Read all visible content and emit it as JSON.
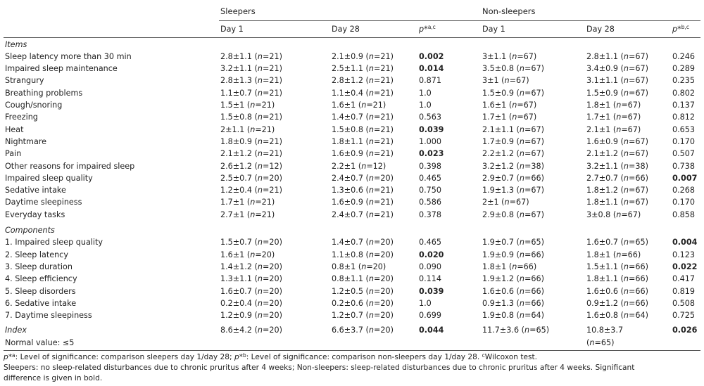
{
  "header": {
    "group_sleepers": "Sleepers",
    "group_nonsleepers": "Non-sleepers",
    "day1": "Day 1",
    "day28": "Day 28",
    "p_a": "p*",
    "p_a_sup": "a,c",
    "p_b": "p*",
    "p_b_sup": "b,c"
  },
  "sections": {
    "items": "Items",
    "components": "Components"
  },
  "items": [
    {
      "label": "Sleep latency more than 30 min",
      "s1": "2.8±1.1 (n=21)",
      "s28": "2.1±0.9 (n=21)",
      "ps": "0.002",
      "psb": true,
      "n1": "3±1.1 (n=67)",
      "n28": "2.8±1.1 (n=67)",
      "pn": "0.246",
      "pnb": false
    },
    {
      "label": "Impaired sleep maintenance",
      "s1": "3.2±1.1 (n=21)",
      "s28": "2.5±1.1 (n=21)",
      "ps": "0.014",
      "psb": true,
      "n1": "3.5±0.8 (n=67)",
      "n28": "3.4±0.9 (n=67)",
      "pn": "0.289",
      "pnb": false
    },
    {
      "label": "Strangury",
      "s1": "2.8±1.3 (n=21)",
      "s28": "2.8±1.2 (n=21)",
      "ps": "0.871",
      "psb": false,
      "n1": "3±1 (n=67)",
      "n28": "3.1±1.1 (n=67)",
      "pn": "0.235",
      "pnb": false
    },
    {
      "label": "Breathing problems",
      "s1": "1.1±0.7 (n=21)",
      "s28": "1.1±0.4 (n=21)",
      "ps": "1.0",
      "psb": false,
      "n1": "1.5±0.9 (n=67)",
      "n28": "1.5±0.9 (n=67)",
      "pn": "0.802",
      "pnb": false
    },
    {
      "label": "Cough/snoring",
      "s1": "1.5±1 (n=21)",
      "s28": "1.6±1 (n=21)",
      "ps": "1.0",
      "psb": false,
      "n1": "1.6±1 (n=67)",
      "n28": "1.8±1 (n=67)",
      "pn": "0.137",
      "pnb": false
    },
    {
      "label": "Freezing",
      "s1": "1.5±0.8 (n=21)",
      "s28": "1.4±0.7 (n=21)",
      "ps": "0.563",
      "psb": false,
      "n1": "1.7±1 (n=67)",
      "n28": "1.7±1 (n=67)",
      "pn": "0.812",
      "pnb": false
    },
    {
      "label": "Heat",
      "s1": "2±1.1 (n=21)",
      "s28": "1.5±0.8 (n=21)",
      "ps": "0.039",
      "psb": true,
      "n1": "2.1±1.1 (n=67)",
      "n28": "2.1±1 (n=67)",
      "pn": "0.653",
      "pnb": false
    },
    {
      "label": "Nightmare",
      "s1": "1.8±0.9 (n=21)",
      "s28": "1.8±1.1 (n=21)",
      "ps": "1.000",
      "psb": false,
      "n1": "1.7±0.9 (n=67)",
      "n28": "1.6±0.9 (n=67)",
      "pn": "0.170",
      "pnb": false
    },
    {
      "label": "Pain",
      "s1": "2.1±1.2 (n=21)",
      "s28": "1.6±0.9 (n=21)",
      "ps": "0.023",
      "psb": true,
      "n1": "2.2±1.2 (n=67)",
      "n28": "2.1±1.2 (n=67)",
      "pn": "0.507",
      "pnb": false
    },
    {
      "label": "Other reasons for impaired sleep",
      "s1": "2.6±1.2 (n=12)",
      "s28": "2.2±1 (n=12)",
      "ps": "0.398",
      "psb": false,
      "n1": "3.2±1.2 (n=38)",
      "n28": "3.2±1.1 (n=38)",
      "pn": "0.738",
      "pnb": false
    },
    {
      "label": "Impaired sleep quality",
      "s1": "2.5±0.7 (n=20)",
      "s28": "2.4±0.7 (n=20)",
      "ps": "0.465",
      "psb": false,
      "n1": "2.9±0.7 (n=66)",
      "n28": "2.7±0.7 (n=66)",
      "pn": "0.007",
      "pnb": true
    },
    {
      "label": "Sedative intake",
      "s1": "1.2±0.4 (n=21)",
      "s28": "1.3±0.6 (n=21)",
      "ps": "0.750",
      "psb": false,
      "n1": "1.9±1.3 (n=67)",
      "n28": "1.8±1.2 (n=67)",
      "pn": "0.268",
      "pnb": false
    },
    {
      "label": "Daytime sleepiness",
      "s1": "1.7±1 (n=21)",
      "s28": "1.6±0.9 (n=21)",
      "ps": "0.586",
      "psb": false,
      "n1": "2±1 (n=67)",
      "n28": "1.8±1.1 (n=67)",
      "pn": "0.170",
      "pnb": false
    },
    {
      "label": "Everyday tasks",
      "s1": "2.7±1 (n=21)",
      "s28": "2.4±0.7 (n=21)",
      "ps": "0.378",
      "psb": false,
      "n1": "2.9±0.8 (n=67)",
      "n28": "3±0.8 (n=67)",
      "pn": "0.858",
      "pnb": false
    }
  ],
  "components": [
    {
      "label": "1. Impaired sleep quality",
      "s1": "1.5±0.7 (n=20)",
      "s28": "1.4±0.7 (n=20)",
      "ps": "0.465",
      "psb": false,
      "n1": "1.9±0.7 (n=65)",
      "n28": "1.6±0.7 (n=65)",
      "pn": "0.004",
      "pnb": true
    },
    {
      "label": "2. Sleep latency",
      "s1": "1.6±1 (n=20)",
      "s28": "1.1±0.8 (n=20)",
      "ps": "0.020",
      "psb": true,
      "n1": "1.9±0.9 (n=66)",
      "n28": "1.8±1 (n=66)",
      "pn": "0.123",
      "pnb": false
    },
    {
      "label": "3. Sleep duration",
      "s1": "1.4±1.2 (n=20)",
      "s28": "0.8±1 (n=20)",
      "ps": "0.090",
      "psb": false,
      "n1": "1.8±1 (n=66)",
      "n28": "1.5±1.1 (n=66)",
      "pn": "0.022",
      "pnb": true
    },
    {
      "label": "4. Sleep efficiency",
      "s1": "1.3±1.1 (n=20)",
      "s28": "0.8±1.1 (n=20)",
      "ps": "0.114",
      "psb": false,
      "n1": "1.9±1.2 (n=66)",
      "n28": "1.8±1.1 (n=66)",
      "pn": "0.417",
      "pnb": false
    },
    {
      "label": "5. Sleep disorders",
      "s1": "1.6±0.7 (n=20)",
      "s28": "1.2±0.5 (n=20)",
      "ps": "0.039",
      "psb": true,
      "n1": "1.6±0.6 (n=66)",
      "n28": "1.6±0.6 (n=66)",
      "pn": "0.819",
      "pnb": false
    },
    {
      "label": "6. Sedative intake",
      "s1": "0.2±0.4 (n=20)",
      "s28": "0.2±0.6 (n=20)",
      "ps": "1.0",
      "psb": false,
      "n1": "0.9±1.3 (n=66)",
      "n28": "0.9±1.2 (n=66)",
      "pn": "0.508",
      "pnb": false
    },
    {
      "label": "7. Daytime sleepiness",
      "s1": "1.2±0.9 (n=20)",
      "s28": "1.2±0.7 (n=20)",
      "ps": "0.699",
      "psb": false,
      "n1": "1.9±0.8 (n=64)",
      "n28": "1.6±0.8 (n=64)",
      "pn": "0.725",
      "pnb": false
    }
  ],
  "index": {
    "label": "Index",
    "normal": "Normal value: ≤5",
    "s1": "8.6±4.2 (n=20)",
    "s28": "6.6±3.7 (n=20)",
    "ps": "0.044",
    "n1": "11.7±3.6 (n=65)",
    "n28_a": "10.8±3.7",
    "n28_b": "(n=65)",
    "pn": "0.026"
  },
  "notes": {
    "line1_a_p": "p*",
    "line1_a_sup": "a",
    "line1_a_text": ": Level of significance: comparison sleepers day 1/day 28; ",
    "line1_b_p": "p*",
    "line1_b_sup": "b",
    "line1_b_text": ": Level of significance: comparison non-sleepers day 1/day 28. ",
    "line1_c_sup": "c",
    "line1_c_text": "Wilcoxon test.",
    "line2": "Sleepers: no sleep-related disturbances due to chronic pruritus after 4 weeks; Non-sleepers: sleep-related disturbances due to chronic pruritus after 4 weeks. Significant",
    "line3": "difference is given in bold."
  }
}
